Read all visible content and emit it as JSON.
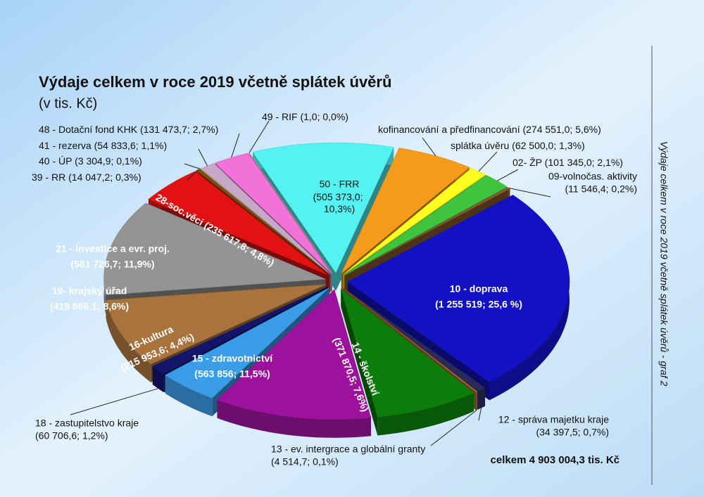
{
  "chart_data": {
    "type": "pie",
    "title": "Výdaje celkem v roce 2019 včetně splátek úvěrů",
    "subtitle": "(v tis. Kč)",
    "total_label": "celkem 4 903 004,3 tis. Kč",
    "side_label": "Výdaje celkem v roce 2019 včetně splátek úvěrů - graf 2",
    "categories": [
      "50 - FRR",
      "kofinancování a předfinancování",
      "splátka úvěru",
      "02- ŽP",
      "09-volnočas. aktivity",
      "10 - doprava",
      "12 - správa majetku kraje",
      "13 - ev. intergrace a globální granty",
      "14 - školství",
      "15 - zdravotnictví",
      "16-kultura",
      "18 - zastupitelstvo kraje",
      "19- krajský úřad",
      "21 - investice a evr. proj.",
      "28-soc.věci",
      "39 - RR",
      "40 - ÚP",
      "41 - rezerva",
      "48 - Dotační fond KHK",
      "49 - RIF"
    ],
    "values": [
      505373.0,
      274551.0,
      62500.0,
      101345.0,
      11546.4,
      1255519,
      34397.5,
      4514.7,
      371870.5,
      563856,
      215953.6,
      60706.6,
      419866.1,
      581726.7,
      235617.8,
      14047.2,
      3304.9,
      54833.6,
      131473.7,
      1.0
    ],
    "value_labels": [
      "(505 373,0; 10,3%)",
      "(274 551,0; 5,6%)",
      "(62 500,0; 1,3%)",
      "(101 345,0; 2,1%)",
      "(11 546,4; 0,2%)",
      "(1 255 519; 25,6 %)",
      "(34 397,5; 0,7%)",
      "(4 514,7; 0,1%)",
      "(371 870,5; 7,6%)",
      "(563 856; 11,5%)",
      "(215 953,6; 4,4%)",
      "(60 706,6; 1,2%)",
      "(419 866,1; 8,6%)",
      "(581 726,7; 11,9%)",
      "(235 617,8; 4,8%)",
      "(14 047,2; 0,3%)",
      "(3 304,9; 0,1%)",
      "(54 833,6; 1,1%)",
      "(131 473,7; 2,7%)",
      "(1,0; 0,0%)"
    ],
    "colors": [
      "#55f2f2",
      "#f59b1c",
      "#ffff20",
      "#3fc43f",
      "#8b5a2b",
      "#1212c4",
      "#2a2a5a",
      "#b87333",
      "#0b7d0b",
      "#9c129c",
      "#3b9ce8",
      "#14146a",
      "#a8733d",
      "#949494",
      "#e21212",
      "#8b4513",
      "#86c97a",
      "#c8a8c8",
      "#f272d8",
      "#c8c8c8"
    ]
  }
}
